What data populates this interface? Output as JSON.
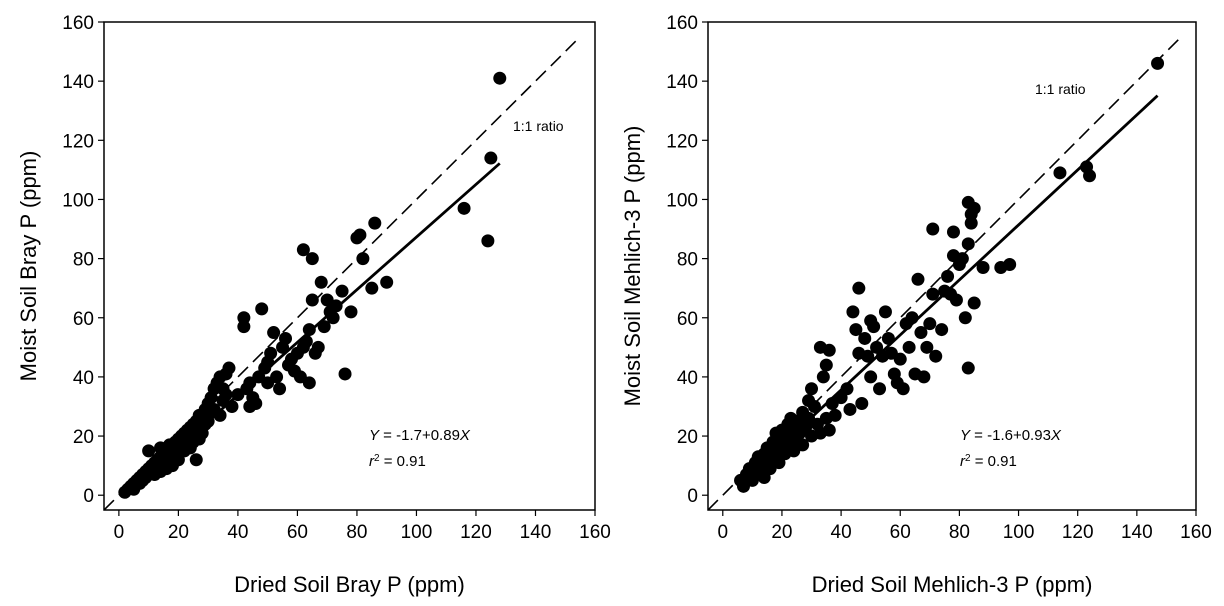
{
  "chart_data": [
    {
      "type": "scatter",
      "xlabel": "Dried Soil Bray P (ppm)",
      "ylabel": "Moist Soil Bray P (ppm)",
      "xlim": [
        -5,
        160
      ],
      "ylim": [
        -5,
        160
      ],
      "xticks": [
        0,
        20,
        40,
        60,
        80,
        100,
        120,
        140,
        160
      ],
      "yticks": [
        0,
        20,
        40,
        60,
        80,
        100,
        120,
        140,
        160
      ],
      "grid": false,
      "reference_line": {
        "label": "1:1 ratio",
        "from": [
          -5,
          -5
        ],
        "to": [
          155,
          155
        ]
      },
      "regression_line": {
        "from": [
          2,
          0.1
        ],
        "to": [
          128,
          112.2
        ]
      },
      "equation": {
        "y_var": "Y",
        "rhs": " = -1.7+0.89",
        "x_var": "X"
      },
      "r2": {
        "r": "r",
        "sup": "2",
        "rhs": " = 0.91"
      },
      "points": [
        [
          2,
          1
        ],
        [
          3,
          2
        ],
        [
          4,
          3
        ],
        [
          5,
          4
        ],
        [
          5,
          2
        ],
        [
          6,
          5
        ],
        [
          7,
          6
        ],
        [
          7,
          4
        ],
        [
          8,
          7
        ],
        [
          8,
          5
        ],
        [
          9,
          8
        ],
        [
          9,
          6
        ],
        [
          10,
          9
        ],
        [
          10,
          7
        ],
        [
          10,
          15
        ],
        [
          11,
          10
        ],
        [
          11,
          8
        ],
        [
          12,
          11
        ],
        [
          12,
          7
        ],
        [
          13,
          12
        ],
        [
          13,
          9
        ],
        [
          14,
          13
        ],
        [
          14,
          8
        ],
        [
          14,
          16
        ],
        [
          15,
          14
        ],
        [
          15,
          11
        ],
        [
          16,
          15
        ],
        [
          16,
          12
        ],
        [
          16,
          9
        ],
        [
          17,
          17
        ],
        [
          17,
          14
        ],
        [
          18,
          16
        ],
        [
          18,
          13
        ],
        [
          18,
          10
        ],
        [
          19,
          18
        ],
        [
          19,
          15
        ],
        [
          20,
          19
        ],
        [
          20,
          14
        ],
        [
          20,
          12
        ],
        [
          21,
          20
        ],
        [
          21,
          17
        ],
        [
          22,
          21
        ],
        [
          22,
          18
        ],
        [
          22,
          15
        ],
        [
          23,
          22
        ],
        [
          23,
          19
        ],
        [
          24,
          23
        ],
        [
          24,
          20
        ],
        [
          24,
          16
        ],
        [
          25,
          24
        ],
        [
          25,
          21
        ],
        [
          25,
          18
        ],
        [
          26,
          25
        ],
        [
          26,
          22
        ],
        [
          26,
          12
        ],
        [
          27,
          27
        ],
        [
          27,
          23
        ],
        [
          27,
          19
        ],
        [
          28,
          26
        ],
        [
          28,
          21
        ],
        [
          29,
          29
        ],
        [
          29,
          24
        ],
        [
          30,
          31
        ],
        [
          30,
          28
        ],
        [
          30,
          25
        ],
        [
          31,
          33
        ],
        [
          32,
          36
        ],
        [
          32,
          29
        ],
        [
          33,
          38
        ],
        [
          34,
          27
        ],
        [
          34,
          40
        ],
        [
          35,
          36
        ],
        [
          35,
          32
        ],
        [
          36,
          41
        ],
        [
          36,
          34
        ],
        [
          37,
          43
        ],
        [
          38,
          30
        ],
        [
          40,
          34
        ],
        [
          42,
          60
        ],
        [
          42,
          57
        ],
        [
          43,
          36
        ],
        [
          44,
          38
        ],
        [
          44,
          30
        ],
        [
          45,
          33
        ],
        [
          46,
          31
        ],
        [
          47,
          40
        ],
        [
          48,
          63
        ],
        [
          49,
          43
        ],
        [
          50,
          45
        ],
        [
          50,
          38
        ],
        [
          51,
          48
        ],
        [
          52,
          55
        ],
        [
          53,
          40
        ],
        [
          54,
          36
        ],
        [
          55,
          50
        ],
        [
          56,
          53
        ],
        [
          57,
          44
        ],
        [
          58,
          46
        ],
        [
          59,
          42
        ],
        [
          60,
          48
        ],
        [
          61,
          40
        ],
        [
          62,
          83
        ],
        [
          62,
          50
        ],
        [
          63,
          52
        ],
        [
          64,
          56
        ],
        [
          64,
          38
        ],
        [
          65,
          80
        ],
        [
          65,
          66
        ],
        [
          66,
          48
        ],
        [
          67,
          50
        ],
        [
          68,
          72
        ],
        [
          69,
          57
        ],
        [
          70,
          66
        ],
        [
          71,
          62
        ],
        [
          72,
          60
        ],
        [
          73,
          64
        ],
        [
          75,
          69
        ],
        [
          76,
          41
        ],
        [
          78,
          62
        ],
        [
          80,
          87
        ],
        [
          81,
          88
        ],
        [
          82,
          80
        ],
        [
          85,
          70
        ],
        [
          86,
          92
        ],
        [
          90,
          72
        ],
        [
          116,
          97
        ],
        [
          124,
          86
        ],
        [
          125,
          114
        ],
        [
          128,
          141
        ]
      ]
    },
    {
      "type": "scatter",
      "xlabel": "Dried Soil Mehlich-3 P (ppm)",
      "ylabel": "Moist Soil Mehlich-3 P (ppm)",
      "xlim": [
        -5,
        160
      ],
      "ylim": [
        -5,
        160
      ],
      "xticks": [
        0,
        20,
        40,
        60,
        80,
        100,
        120,
        140,
        160
      ],
      "yticks": [
        0,
        20,
        40,
        60,
        80,
        100,
        120,
        140,
        160
      ],
      "grid": false,
      "reference_line": {
        "label": "1:1 ratio",
        "from": [
          -5,
          -5
        ],
        "to": [
          155,
          155
        ]
      },
      "regression_line": {
        "from": [
          5,
          3.05
        ],
        "to": [
          147,
          135.1
        ]
      },
      "equation": {
        "y_var": "Y",
        "rhs": " = -1.6+0.93",
        "x_var": "X"
      },
      "r2": {
        "r": "r",
        "sup": "2",
        "rhs": " = 0.91"
      },
      "points": [
        [
          6,
          5
        ],
        [
          7,
          3
        ],
        [
          8,
          7
        ],
        [
          8,
          5
        ],
        [
          9,
          9
        ],
        [
          9,
          6
        ],
        [
          10,
          8
        ],
        [
          10,
          5
        ],
        [
          11,
          11
        ],
        [
          11,
          7
        ],
        [
          12,
          10
        ],
        [
          12,
          13
        ],
        [
          13,
          9
        ],
        [
          13,
          12
        ],
        [
          14,
          14
        ],
        [
          14,
          6
        ],
        [
          15,
          16
        ],
        [
          15,
          10
        ],
        [
          16,
          13
        ],
        [
          16,
          9
        ],
        [
          17,
          18
        ],
        [
          17,
          12
        ],
        [
          18,
          15
        ],
        [
          18,
          21
        ],
        [
          19,
          17
        ],
        [
          19,
          11
        ],
        [
          20,
          22
        ],
        [
          20,
          16
        ],
        [
          21,
          19
        ],
        [
          21,
          14
        ],
        [
          22,
          24
        ],
        [
          22,
          18
        ],
        [
          23,
          20
        ],
        [
          23,
          26
        ],
        [
          24,
          22
        ],
        [
          24,
          15
        ],
        [
          25,
          25
        ],
        [
          25,
          19
        ],
        [
          26,
          21
        ],
        [
          27,
          28
        ],
        [
          27,
          17
        ],
        [
          28,
          23
        ],
        [
          29,
          32
        ],
        [
          29,
          26
        ],
        [
          30,
          36
        ],
        [
          30,
          20
        ],
        [
          31,
          30
        ],
        [
          32,
          24
        ],
        [
          33,
          50
        ],
        [
          33,
          21
        ],
        [
          34,
          40
        ],
        [
          35,
          44
        ],
        [
          35,
          26
        ],
        [
          36,
          49
        ],
        [
          36,
          22
        ],
        [
          37,
          31
        ],
        [
          38,
          27
        ],
        [
          40,
          33
        ],
        [
          42,
          36
        ],
        [
          43,
          29
        ],
        [
          44,
          62
        ],
        [
          45,
          56
        ],
        [
          46,
          70
        ],
        [
          46,
          48
        ],
        [
          47,
          31
        ],
        [
          48,
          53
        ],
        [
          49,
          47
        ],
        [
          50,
          59
        ],
        [
          50,
          40
        ],
        [
          51,
          57
        ],
        [
          52,
          50
        ],
        [
          53,
          36
        ],
        [
          54,
          47
        ],
        [
          55,
          62
        ],
        [
          56,
          53
        ],
        [
          57,
          48
        ],
        [
          58,
          41
        ],
        [
          59,
          38
        ],
        [
          60,
          46
        ],
        [
          61,
          36
        ],
        [
          62,
          58
        ],
        [
          63,
          50
        ],
        [
          64,
          60
        ],
        [
          65,
          41
        ],
        [
          66,
          73
        ],
        [
          67,
          55
        ],
        [
          68,
          40
        ],
        [
          69,
          50
        ],
        [
          70,
          58
        ],
        [
          71,
          90
        ],
        [
          71,
          68
        ],
        [
          72,
          47
        ],
        [
          74,
          56
        ],
        [
          75,
          69
        ],
        [
          76,
          74
        ],
        [
          77,
          68
        ],
        [
          78,
          89
        ],
        [
          78,
          81
        ],
        [
          79,
          66
        ],
        [
          80,
          78
        ],
        [
          81,
          80
        ],
        [
          82,
          60
        ],
        [
          83,
          43
        ],
        [
          83,
          85
        ],
        [
          83,
          99
        ],
        [
          84,
          95
        ],
        [
          84,
          92
        ],
        [
          85,
          97
        ],
        [
          85,
          65
        ],
        [
          88,
          77
        ],
        [
          94,
          77
        ],
        [
          97,
          78
        ],
        [
          114,
          109
        ],
        [
          123,
          111
        ],
        [
          124,
          108
        ],
        [
          147,
          146
        ]
      ]
    }
  ]
}
